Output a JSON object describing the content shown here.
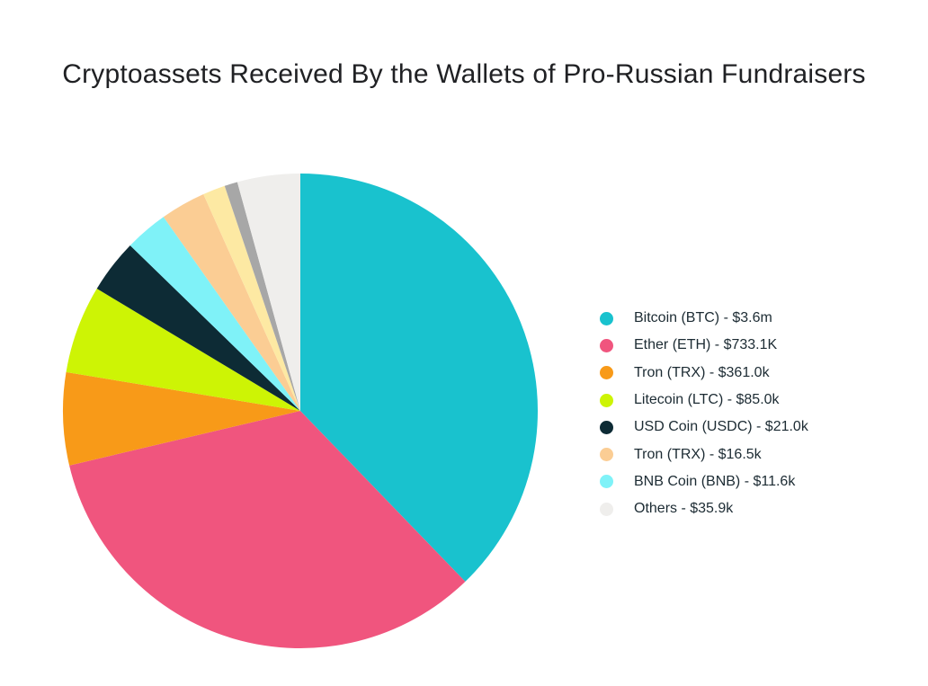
{
  "page": {
    "background": "#ffffff"
  },
  "chart_data": {
    "type": "pie",
    "title": "Cryptoassets Received By the Wallets of Pro-Russian Fundraisers",
    "legend_position": "right",
    "legend_separator": " - ",
    "rotation": "clockwise-from-top",
    "slices": [
      {
        "label": "Bitcoin (BTC)",
        "value_text": "$3.6m",
        "color": "#19c2ce",
        "start_deg": 0,
        "end_deg": 136.0
      },
      {
        "label": "Ether (ETH)",
        "value_text": "$733.1K",
        "color": "#f0557e",
        "start_deg": 136.0,
        "end_deg": 256.7
      },
      {
        "label": "Tron (TRX)",
        "value_text": "$361.0k",
        "color": "#f89a18",
        "start_deg": 256.7,
        "end_deg": 279.4
      },
      {
        "label": "Litecoin (LTC)",
        "value_text": "$85.0k",
        "color": "#cdf405",
        "start_deg": 279.4,
        "end_deg": 301.0
      },
      {
        "label": "USD Coin (USDC)",
        "value_text": "$21.0k",
        "color": "#0d2b35",
        "start_deg": 301.0,
        "end_deg": 314.2
      },
      {
        "label": "BNB Coin (BNB)",
        "value_text": "$11.6k",
        "color": "#7ff2f8",
        "start_deg": 314.2,
        "end_deg": 324.8
      },
      {
        "label": "Tron (TRX)",
        "value_text": "$16.5k",
        "color": "#fbcd94",
        "start_deg": 324.8,
        "end_deg": 335.9
      },
      {
        "label": "",
        "value_text": "",
        "color": "#fde9a3",
        "start_deg": 335.9,
        "end_deg": 341.4
      },
      {
        "label": "",
        "value_text": "",
        "color": "#a7a7a7",
        "start_deg": 341.4,
        "end_deg": 344.6
      },
      {
        "label": "Others",
        "value_text": "$35.9k",
        "color": "#efeeec",
        "start_deg": 344.6,
        "end_deg": 360.0
      }
    ],
    "legend_order": [
      0,
      1,
      2,
      3,
      4,
      6,
      5,
      9
    ]
  }
}
